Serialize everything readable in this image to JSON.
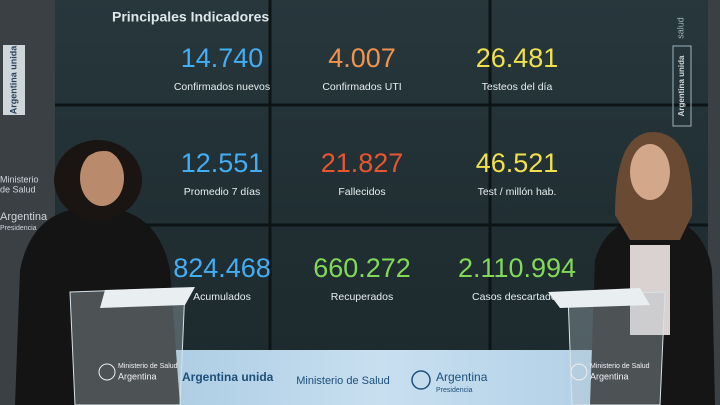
{
  "screen": {
    "title": "Principales Indicadores",
    "indicators": [
      {
        "value": "14.740",
        "label": "Confirmados nuevos",
        "color": "#43aef5"
      },
      {
        "value": "4.007",
        "label": "Confirmados UTI",
        "color": "#f2934d"
      },
      {
        "value": "26.481",
        "label": "Testeos del día",
        "color": "#f0e04c"
      },
      {
        "value": "12.551",
        "label": "Promedio 7 días",
        "color": "#43aef5"
      },
      {
        "value": "21.827",
        "label": "Fallecidos",
        "color": "#e9552f"
      },
      {
        "value": "46.521",
        "label": "Test / millón hab.",
        "color": "#f0e04c"
      },
      {
        "value": "824.468",
        "label": "Acumulados",
        "color": "#43aef5"
      },
      {
        "value": "660.272",
        "label": "Recuperados",
        "color": "#82d957"
      },
      {
        "value": "2.110.994",
        "label": "Casos descartados",
        "color": "#82d957"
      }
    ]
  },
  "banner": {
    "slogan": "Argentina unida",
    "ministry": "Ministerio de Salud",
    "brand": "Argentina",
    "sub": "Presidencia"
  },
  "left_panel": {
    "logo": "Argentina unida",
    "ministry_1": "Ministerio",
    "ministry_2": "de Salud",
    "brand": "Argentina",
    "sub": "Presidencia"
  },
  "right_panel": {
    "logo": "Argentina unida",
    "ministry": "salud"
  },
  "podiums": [
    {
      "ministry": "Ministerio de Salud",
      "country": "Argentina"
    },
    {
      "ministry": "Ministerio de Salud",
      "country": "Argentina"
    }
  ]
}
